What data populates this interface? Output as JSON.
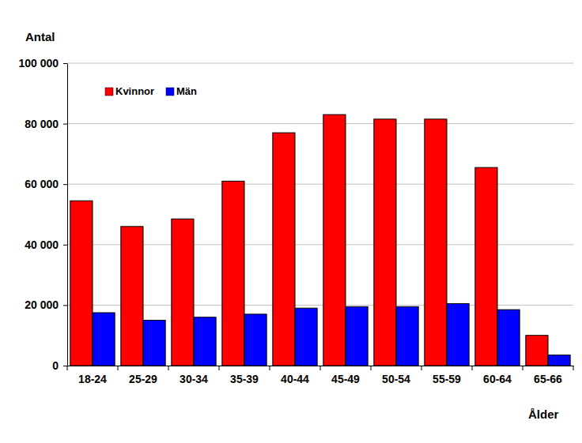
{
  "chart_data": {
    "type": "bar",
    "x_label": "Ålder",
    "y_label": "Antal",
    "categories": [
      "18-24",
      "25-29",
      "30-34",
      "35-39",
      "40-44",
      "45-49",
      "50-54",
      "55-59",
      "60-64",
      "65-66"
    ],
    "series": [
      {
        "name": "Kvinnor",
        "color": "#ff0000",
        "values": [
          54500,
          46000,
          48500,
          61000,
          77000,
          83000,
          81500,
          81500,
          65500,
          10000
        ]
      },
      {
        "name": "Män",
        "color": "#0000ff",
        "values": [
          17500,
          15000,
          16000,
          17000,
          19000,
          19500,
          19500,
          20500,
          18500,
          3500
        ]
      }
    ],
    "ylim": [
      0,
      100000
    ],
    "yticks": [
      0,
      {
        "value": 20000,
        "label": "20 000"
      },
      {
        "value": 40000,
        "label": "40 000"
      },
      {
        "value": 60000,
        "label": "60 000"
      },
      {
        "value": 80000,
        "label": "80 000"
      },
      {
        "value": 100000,
        "label": "100 000"
      }
    ],
    "grid": true,
    "legend": "upper left"
  }
}
